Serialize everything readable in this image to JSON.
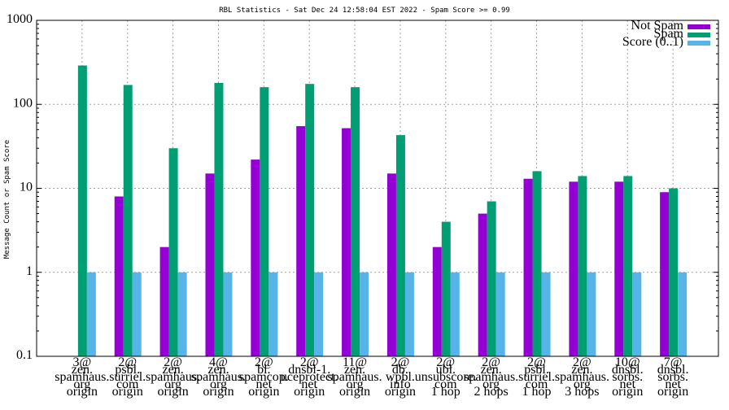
{
  "chart_data": {
    "type": "bar",
    "title": "RBL Statistics - Sat Dec 24 12:58:04 EST 2022 - Spam Score >= 0.99",
    "ylabel": "Message Count or Spam Score",
    "xlabel": "",
    "y_scale": "log",
    "ylim": [
      0.1,
      1000
    ],
    "y_ticks": [
      "0.1",
      "1",
      "10",
      "100",
      "1000"
    ],
    "grid": true,
    "legend_position": "top-right",
    "categories": [
      [
        "3@",
        "zen.",
        "spamhaus.",
        "org",
        "origin"
      ],
      [
        "2@",
        "psbl.",
        "surriel.",
        "com",
        "origin"
      ],
      [
        "2@",
        "zen.",
        "spamhaus.",
        "org",
        "origin"
      ],
      [
        "4@",
        "zen.",
        "spamhaus.",
        "org",
        "origin"
      ],
      [
        "2@",
        "bl.",
        "spamcop.",
        "net",
        "origin"
      ],
      [
        "2@",
        "dnsbl-1.",
        "uceprotect.",
        "net",
        "origin"
      ],
      [
        "11@",
        "zen.",
        "spamhaus.",
        "org",
        "origin"
      ],
      [
        "2@",
        "db.",
        "wpbl.",
        "info",
        "origin"
      ],
      [
        "2@",
        "ubl.",
        "unsubscore.",
        "com",
        "1 hop"
      ],
      [
        "2@",
        "zen.",
        "spamhaus.",
        "org",
        "2 hops"
      ],
      [
        "2@",
        "psbl.",
        "surriel.",
        "com",
        "1 hop"
      ],
      [
        "2@",
        "zen.",
        "spamhaus.",
        "org",
        "3 hops"
      ],
      [
        "10@",
        "dnsbl.",
        "sorbs.",
        "net",
        "origin"
      ],
      [
        "7@",
        "dnsbl.",
        "sorbs.",
        "net",
        "origin"
      ]
    ],
    "series": [
      {
        "name": "Not Spam",
        "color": "#9400d3",
        "values": [
          null,
          8,
          2,
          15,
          22,
          55,
          52,
          15,
          2,
          5,
          13,
          12,
          12,
          9
        ]
      },
      {
        "name": "Spam",
        "color": "#009e73",
        "values": [
          290,
          170,
          30,
          180,
          160,
          175,
          160,
          43,
          4,
          7,
          16,
          14,
          14,
          10
        ]
      },
      {
        "name": "Score (0..1)",
        "color": "#56b4e9",
        "values": [
          1,
          1,
          1,
          1,
          1,
          1,
          1,
          1,
          1,
          1,
          1,
          1,
          1,
          1
        ]
      }
    ]
  }
}
